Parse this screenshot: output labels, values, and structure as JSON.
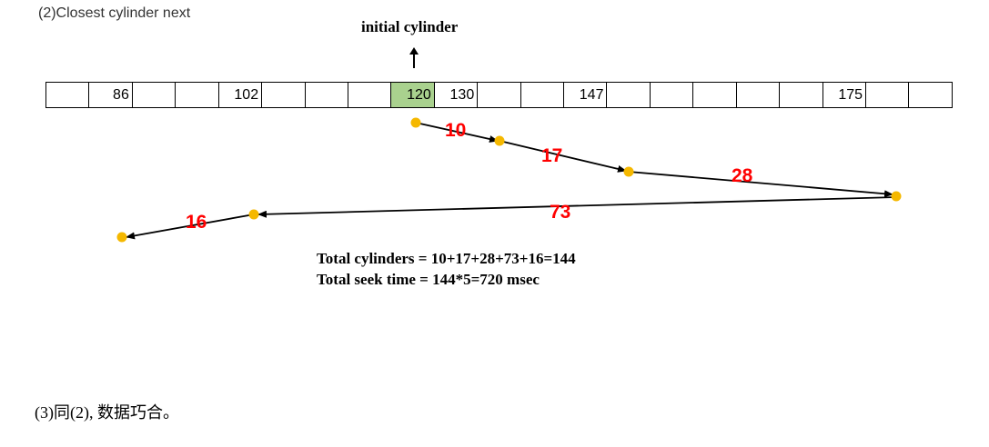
{
  "section_title": "(2)Closest cylinder next",
  "initial_label": "initial cylinder",
  "cylinder_bar": {
    "cells": [
      "",
      "86",
      "",
      "",
      "102",
      "",
      "",
      "",
      "120",
      "130",
      "",
      "",
      "147",
      "",
      "",
      "",
      "",
      "",
      "175",
      "",
      ""
    ],
    "highlight_index": 8,
    "highlight_color": "#a9d18e"
  },
  "moves": [
    "10",
    "17",
    "28",
    "73",
    "16"
  ],
  "totals": {
    "line1": "Total cylinders = 10+17+28+73+16=144",
    "line2": "Total seek time = 144*5=720 msec"
  },
  "note": "(3)同(2), 数据巧合。",
  "colors": {
    "dot": "#f5b800",
    "distance_label": "#ff0000"
  }
}
